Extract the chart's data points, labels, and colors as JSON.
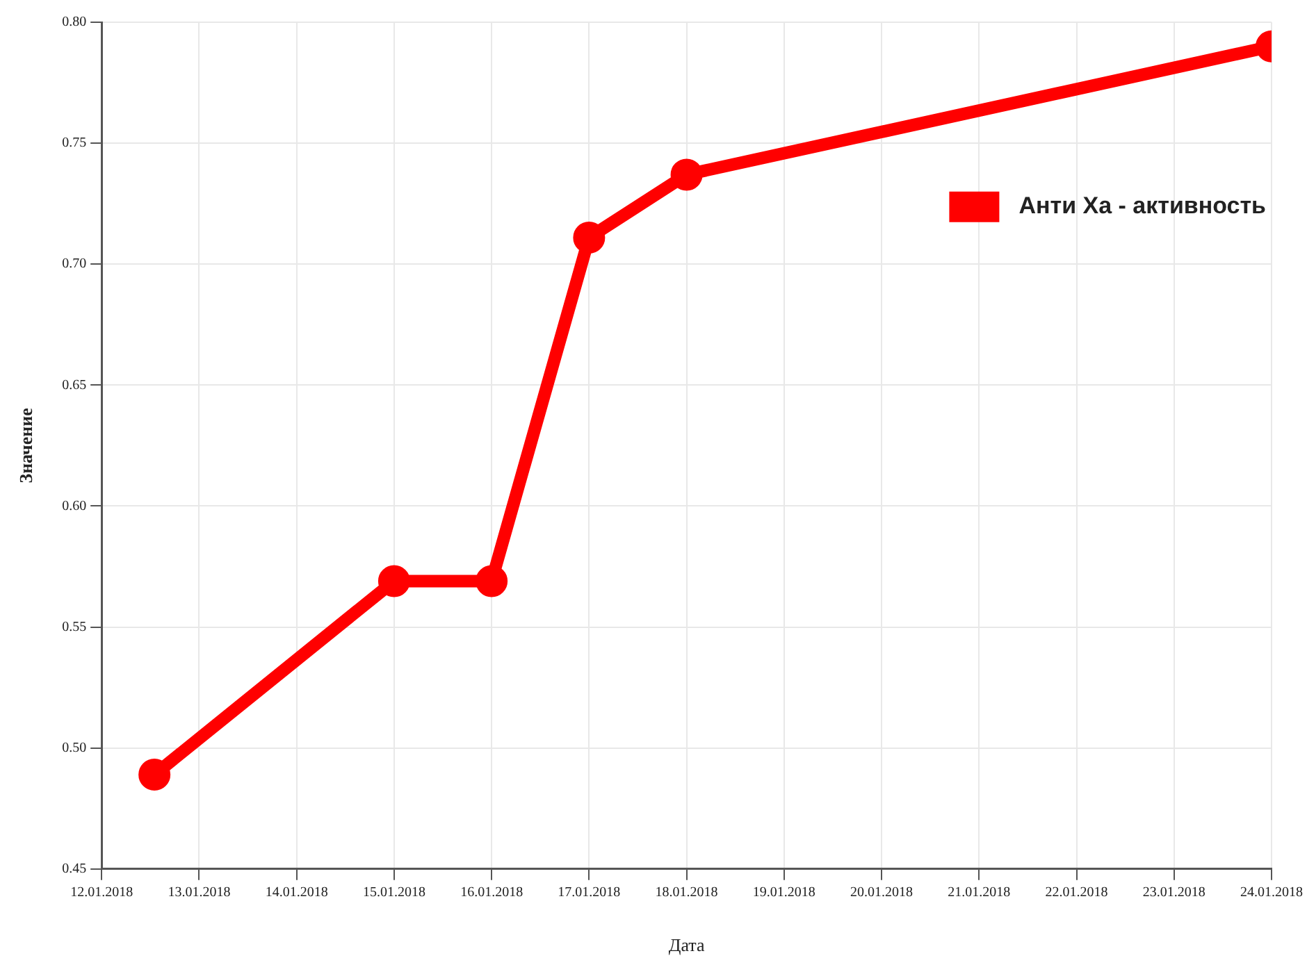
{
  "chart_data": {
    "type": "line",
    "xlabel": "Дата",
    "ylabel": "Значение",
    "x": [
      "2018-01-12T13:00",
      "2018-01-15",
      "2018-01-16",
      "2018-01-17",
      "2018-01-18",
      "2018-01-24"
    ],
    "series": [
      {
        "name": "Анти Ха - активность",
        "color": "#ff0000",
        "values": [
          0.489,
          0.569,
          0.569,
          0.711,
          0.737,
          0.79
        ]
      }
    ],
    "xlim": [
      "2018-01-12",
      "2018-01-24"
    ],
    "xticks": [
      {
        "value": "2018-01-12",
        "label": "12.01.2018"
      },
      {
        "value": "2018-01-13",
        "label": "13.01.2018"
      },
      {
        "value": "2018-01-14",
        "label": "14.01.2018"
      },
      {
        "value": "2018-01-15",
        "label": "15.01.2018"
      },
      {
        "value": "2018-01-16",
        "label": "16.01.2018"
      },
      {
        "value": "2018-01-17",
        "label": "17.01.2018"
      },
      {
        "value": "2018-01-18",
        "label": "18.01.2018"
      },
      {
        "value": "2018-01-19",
        "label": "19.01.2018"
      },
      {
        "value": "2018-01-20",
        "label": "20.01.2018"
      },
      {
        "value": "2018-01-21",
        "label": "21.01.2018"
      },
      {
        "value": "2018-01-22",
        "label": "22.01.2018"
      },
      {
        "value": "2018-01-23",
        "label": "23.01.2018"
      },
      {
        "value": "2018-01-24",
        "label": "24.01.2018"
      }
    ],
    "ylim": [
      0.45,
      0.8
    ],
    "yticks": [
      {
        "value": 0.45,
        "label": "0.45"
      },
      {
        "value": 0.5,
        "label": "0.50"
      },
      {
        "value": 0.55,
        "label": "0.55"
      },
      {
        "value": 0.6,
        "label": "0.60"
      },
      {
        "value": 0.65,
        "label": "0.65"
      },
      {
        "value": 0.7,
        "label": "0.70"
      },
      {
        "value": 0.75,
        "label": "0.75"
      },
      {
        "value": 0.8,
        "label": "0.80"
      }
    ],
    "grid": true,
    "legend": "top right",
    "marker": "circle",
    "line_style": "solid"
  }
}
